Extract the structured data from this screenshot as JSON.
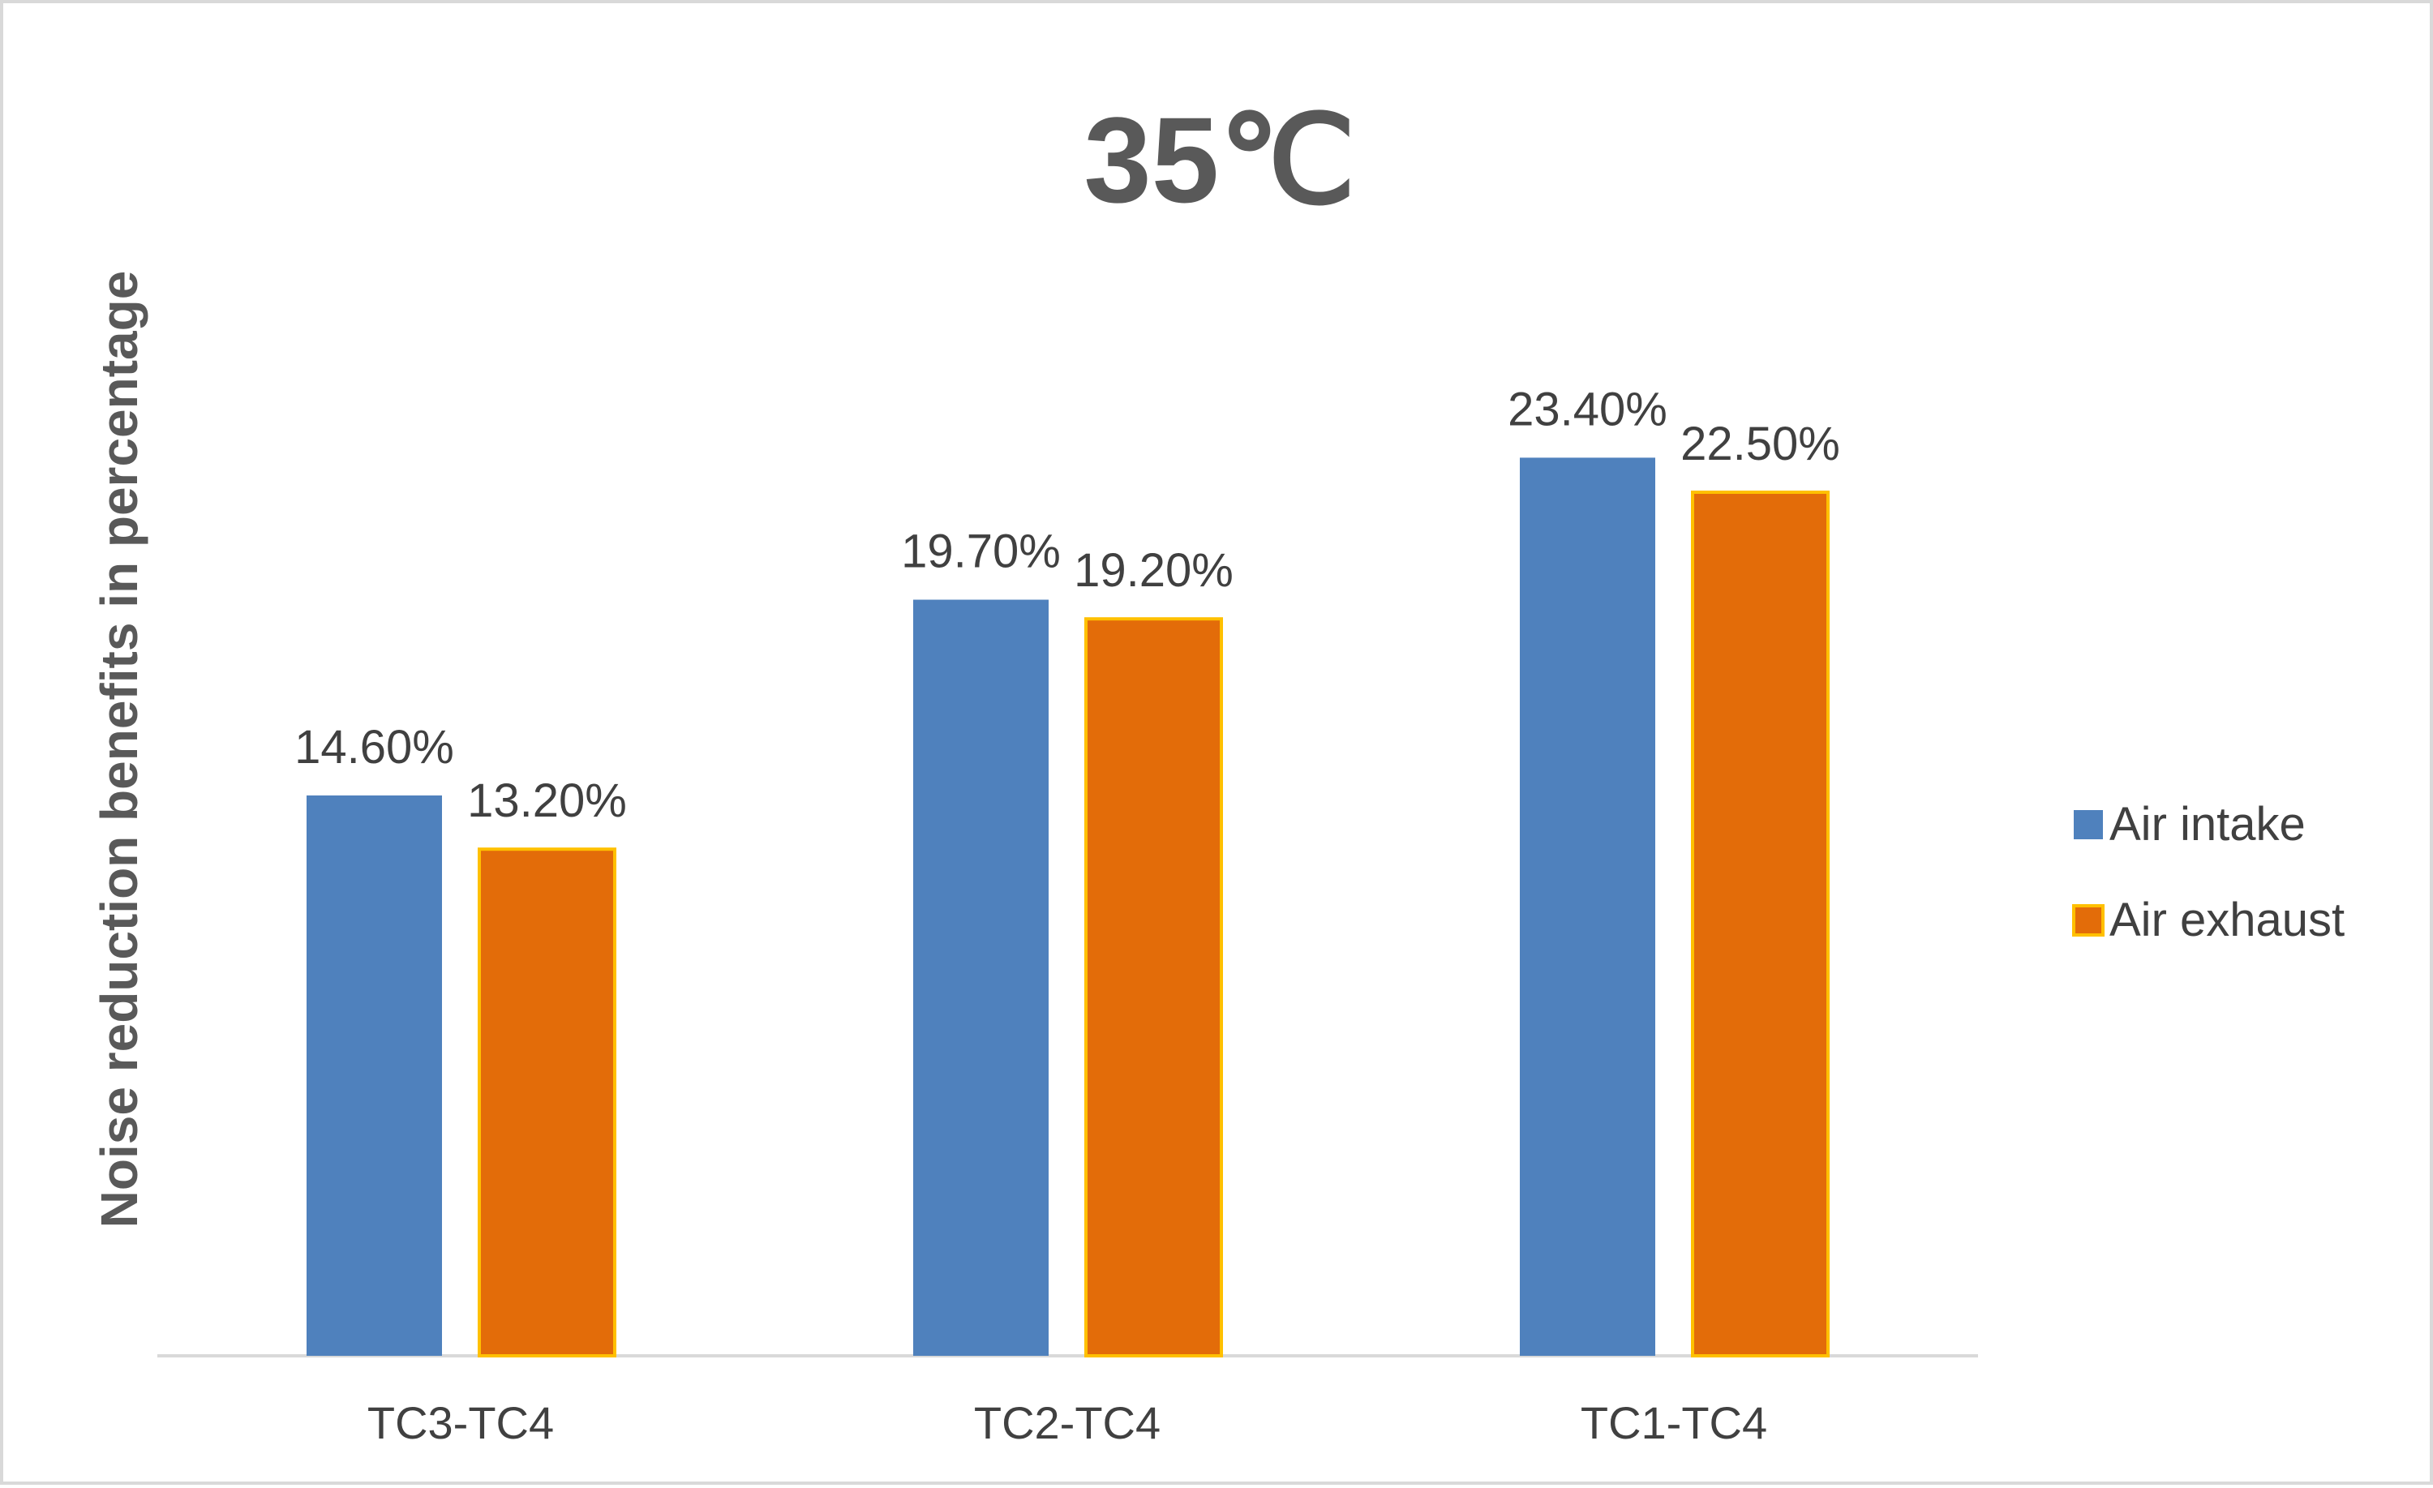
{
  "chart_data": {
    "type": "bar",
    "title": "35℃",
    "xlabel": "",
    "ylabel": "Noise reduction benefits in percentage",
    "categories": [
      "TC3-TC4",
      "TC2-TC4",
      "TC1-TC4"
    ],
    "series": [
      {
        "name": "Air intake",
        "values": [
          14.6,
          19.7,
          23.4
        ],
        "labels": [
          "14.60%",
          "19.70%",
          "23.40%"
        ],
        "color": "#4f81bd",
        "stroke": "#4f81bd"
      },
      {
        "name": "Air exhaust",
        "values": [
          13.2,
          19.2,
          22.5
        ],
        "labels": [
          "13.20%",
          "19.20%",
          "22.50%"
        ],
        "color": "#e36c09",
        "stroke": "#ffc000"
      }
    ],
    "ylim": [
      0,
      30
    ],
    "grid": false,
    "legend_position": "right",
    "axis_color": "#d9d9d9"
  }
}
